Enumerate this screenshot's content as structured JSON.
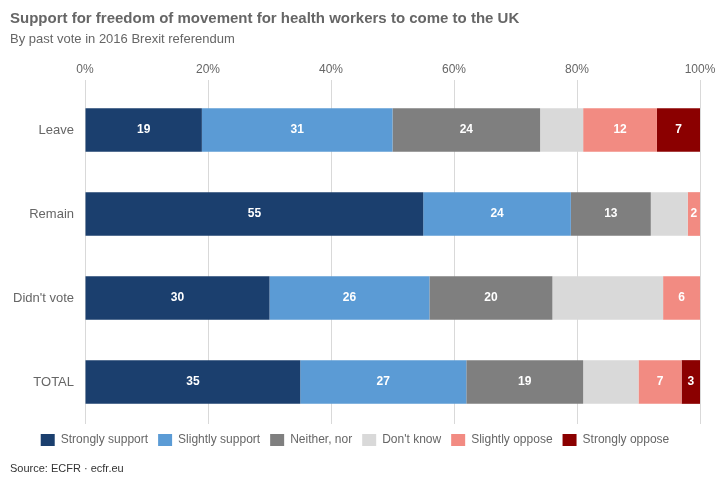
{
  "chart_data": {
    "type": "bar",
    "orientation": "horizontal",
    "stacked": true,
    "title": "Support for freedom of movement for health workers to come to the UK",
    "subtitle": "By past vote in 2016 Brexit referendum",
    "source": "Source: ECFR · ecfr.eu",
    "categories": [
      "Leave",
      "Remain",
      "Didn't vote",
      "TOTAL"
    ],
    "series": [
      {
        "name": "Strongly support",
        "color": "#1b3f6e",
        "values": [
          19,
          55,
          30,
          35
        ],
        "data_labels": true
      },
      {
        "name": "Slightly support",
        "color": "#5b9bd5",
        "values": [
          31,
          24,
          26,
          27
        ],
        "data_labels": true
      },
      {
        "name": "Neither, nor",
        "color": "#7f7f7f",
        "values": [
          24,
          13,
          20,
          19
        ],
        "data_labels": true
      },
      {
        "name": "Don't know",
        "color": "#d9d9d9",
        "values": [
          7,
          6,
          18,
          9
        ],
        "data_labels": false
      },
      {
        "name": "Slightly oppose",
        "color": "#f28b82",
        "values": [
          12,
          2,
          6,
          7
        ],
        "data_labels": true
      },
      {
        "name": "Strongly oppose",
        "color": "#8b0000",
        "values": [
          7,
          0,
          0,
          3
        ],
        "data_labels": true
      }
    ],
    "xlim": [
      0,
      100
    ],
    "xticks": [
      {
        "value": 0,
        "label": "0%"
      },
      {
        "value": 20,
        "label": "20%"
      },
      {
        "value": 40,
        "label": "40%"
      },
      {
        "value": 60,
        "label": "60%"
      },
      {
        "value": 80,
        "label": "80%"
      },
      {
        "value": 100,
        "label": "100%"
      }
    ],
    "grid": "x",
    "legend": "bottom"
  }
}
